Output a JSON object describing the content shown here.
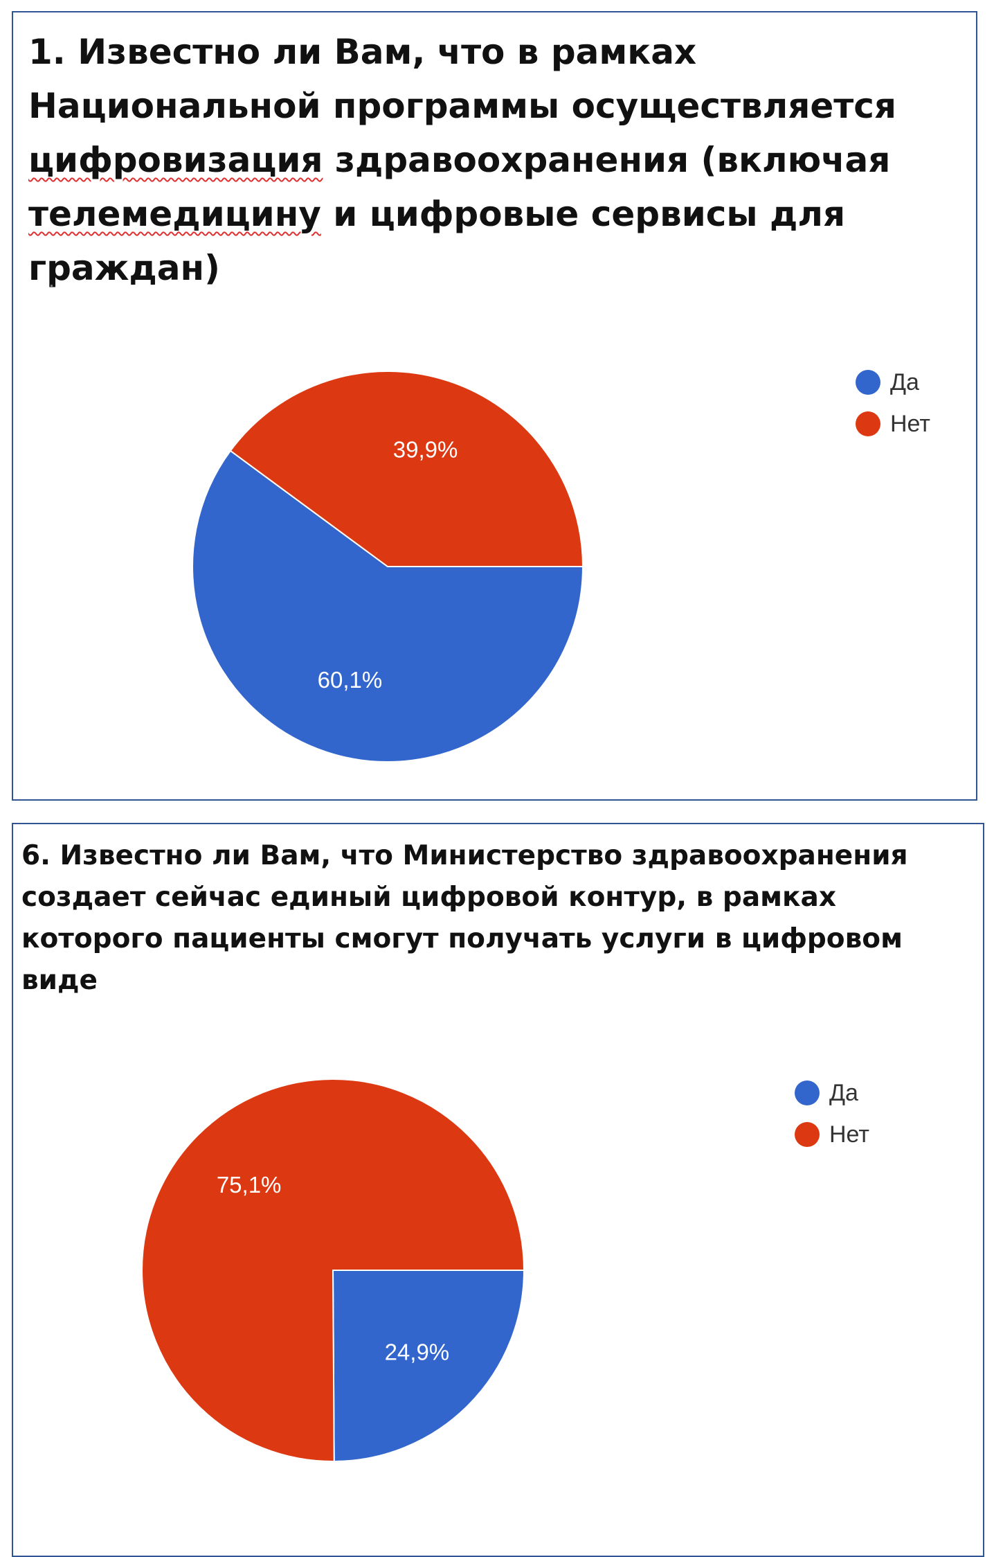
{
  "colors": {
    "yes": "#3366cc",
    "no": "#dc3912",
    "border": "#2f5597"
  },
  "charts": [
    {
      "title_parts": [
        {
          "text": "1. Известно ли Вам, что в рамках Национальной программы осуществляется ",
          "squiggle": false
        },
        {
          "text": "цифровизация",
          "squiggle": true
        },
        {
          "text": " здравоохранения (включая ",
          "squiggle": false
        },
        {
          "text": "телемедицину",
          "squiggle": true
        },
        {
          "text": " и цифровые сервисы для граждан)",
          "squiggle": false
        }
      ]
    },
    {
      "title_parts": [
        {
          "text": "6.  Известно ли Вам, что Министерство здравоохранения создает сейчас единый цифровой контур, в рамках которого пациенты смогут получать услуги в цифровом виде",
          "squiggle": false
        }
      ]
    }
  ],
  "chart_data": [
    {
      "type": "pie",
      "title": "1. Известно ли Вам, что в рамках Национальной программы осуществляется цифровизация здравоохранения (включая телемедицину и цифровые сервисы для граждан)",
      "categories": [
        "Да",
        "Нет"
      ],
      "values": [
        60.1,
        39.9
      ],
      "labels": [
        "60,1%",
        "39,9%"
      ],
      "colors": [
        "#3366cc",
        "#dc3912"
      ],
      "legend": "right"
    },
    {
      "type": "pie",
      "title": "6.  Известно ли Вам, что Министерство здравоохранения создает сейчас единый цифровой контур, в рамках которого пациенты смогут получать услуги в цифровом виде",
      "categories": [
        "Да",
        "Нет"
      ],
      "values": [
        24.9,
        75.1
      ],
      "labels": [
        "24,9%",
        "75,1%"
      ],
      "colors": [
        "#3366cc",
        "#dc3912"
      ],
      "legend": "right"
    }
  ]
}
